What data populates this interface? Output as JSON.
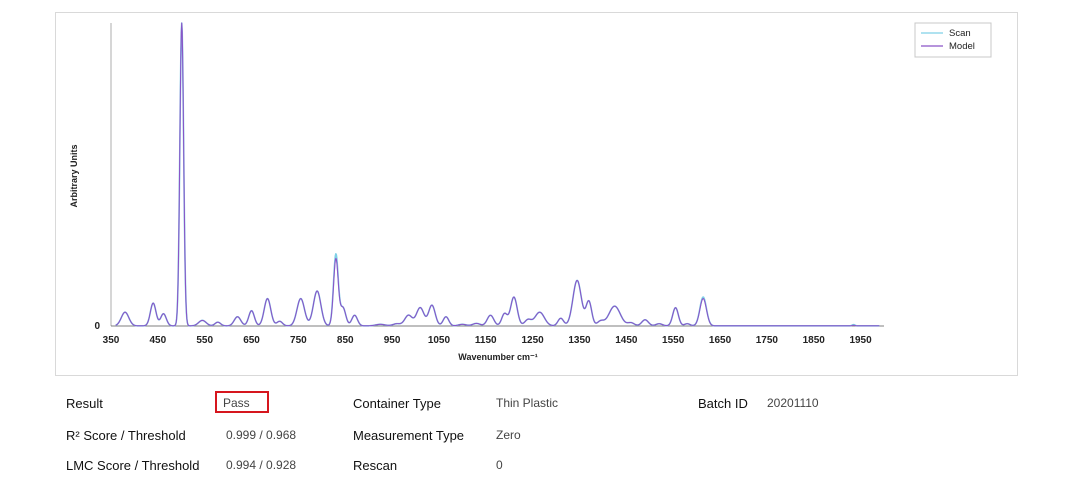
{
  "chart_data": {
    "type": "line",
    "xlabel": "Wavenumber cm⁻¹",
    "ylabel": "Arbitrary Units",
    "xlim": [
      350,
      2000
    ],
    "ylim": [
      0,
      1.0
    ],
    "x_ticks": [
      "350",
      "450",
      "550",
      "650",
      "750",
      "850",
      "950",
      "1050",
      "1150",
      "1250",
      "1350",
      "1450",
      "1550",
      "1650",
      "1750",
      "1850",
      "1950"
    ],
    "y_ticks": [
      "0"
    ],
    "legend_position": "top-right",
    "grid": false,
    "series": [
      {
        "name": "Scan",
        "color": "#7fd0e6",
        "peaks": [
          [
            380,
            0.045,
            8
          ],
          [
            440,
            0.075,
            6
          ],
          [
            462,
            0.04,
            6
          ],
          [
            501,
            1.0,
            4
          ],
          [
            545,
            0.018,
            8
          ],
          [
            578,
            0.012,
            6
          ],
          [
            620,
            0.03,
            7
          ],
          [
            650,
            0.05,
            6
          ],
          [
            684,
            0.09,
            7
          ],
          [
            710,
            0.015,
            6
          ],
          [
            755,
            0.09,
            8
          ],
          [
            790,
            0.115,
            8
          ],
          [
            830,
            0.235,
            5
          ],
          [
            845,
            0.06,
            6
          ],
          [
            870,
            0.035,
            6
          ],
          [
            925,
            0.005,
            10
          ],
          [
            960,
            0.007,
            8
          ],
          [
            985,
            0.035,
            8
          ],
          [
            1010,
            0.06,
            8
          ],
          [
            1035,
            0.068,
            7
          ],
          [
            1065,
            0.03,
            6
          ],
          [
            1100,
            0.005,
            8
          ],
          [
            1130,
            0.008,
            8
          ],
          [
            1160,
            0.035,
            7
          ],
          [
            1190,
            0.04,
            6
          ],
          [
            1210,
            0.095,
            7
          ],
          [
            1240,
            0.02,
            7
          ],
          [
            1265,
            0.045,
            10
          ],
          [
            1310,
            0.025,
            6
          ],
          [
            1345,
            0.15,
            9
          ],
          [
            1370,
            0.08,
            6
          ],
          [
            1395,
            0.015,
            7
          ],
          [
            1425,
            0.065,
            12
          ],
          [
            1460,
            0.01,
            7
          ],
          [
            1490,
            0.02,
            7
          ],
          [
            1520,
            0.007,
            7
          ],
          [
            1555,
            0.06,
            6
          ],
          [
            1580,
            0.007,
            6
          ],
          [
            1614,
            0.095,
            7
          ],
          [
            1935,
            0.004,
            3
          ]
        ]
      },
      {
        "name": "Model",
        "color": "#8a55c8",
        "peaks": [
          [
            380,
            0.045,
            8
          ],
          [
            440,
            0.075,
            6
          ],
          [
            462,
            0.04,
            6
          ],
          [
            501,
            1.0,
            4
          ],
          [
            545,
            0.018,
            8
          ],
          [
            578,
            0.012,
            6
          ],
          [
            620,
            0.03,
            7
          ],
          [
            650,
            0.05,
            6
          ],
          [
            684,
            0.09,
            7
          ],
          [
            710,
            0.015,
            6
          ],
          [
            755,
            0.09,
            8
          ],
          [
            790,
            0.115,
            8
          ],
          [
            830,
            0.22,
            5
          ],
          [
            845,
            0.06,
            6
          ],
          [
            870,
            0.035,
            6
          ],
          [
            925,
            0.005,
            10
          ],
          [
            960,
            0.007,
            8
          ],
          [
            985,
            0.035,
            8
          ],
          [
            1010,
            0.06,
            8
          ],
          [
            1035,
            0.068,
            7
          ],
          [
            1065,
            0.03,
            6
          ],
          [
            1100,
            0.005,
            8
          ],
          [
            1130,
            0.008,
            8
          ],
          [
            1160,
            0.035,
            7
          ],
          [
            1190,
            0.04,
            6
          ],
          [
            1210,
            0.095,
            7
          ],
          [
            1240,
            0.02,
            7
          ],
          [
            1265,
            0.045,
            10
          ],
          [
            1310,
            0.025,
            6
          ],
          [
            1345,
            0.15,
            9
          ],
          [
            1370,
            0.08,
            6
          ],
          [
            1395,
            0.015,
            7
          ],
          [
            1425,
            0.065,
            12
          ],
          [
            1460,
            0.01,
            7
          ],
          [
            1490,
            0.02,
            7
          ],
          [
            1520,
            0.007,
            7
          ],
          [
            1555,
            0.06,
            6
          ],
          [
            1580,
            0.007,
            6
          ],
          [
            1614,
            0.09,
            7
          ],
          [
            1935,
            0.002,
            3
          ]
        ]
      }
    ]
  },
  "info": {
    "result_label": "Result",
    "result_value": "Pass",
    "r2_label": "R² Score / Threshold",
    "r2_value": "0.999 / 0.968",
    "lmc_label": "LMC Score / Threshold",
    "lmc_value": "0.994 / 0.928",
    "container_label": "Container Type",
    "container_value": "Thin Plastic",
    "measurement_label": "Measurement Type",
    "measurement_value": "Zero",
    "rescan_label": "Rescan",
    "rescan_value": "0",
    "batch_label": "Batch ID",
    "batch_value": "20201110"
  },
  "colors": {
    "result_highlight": "#d6161e",
    "axis": "#555555"
  }
}
